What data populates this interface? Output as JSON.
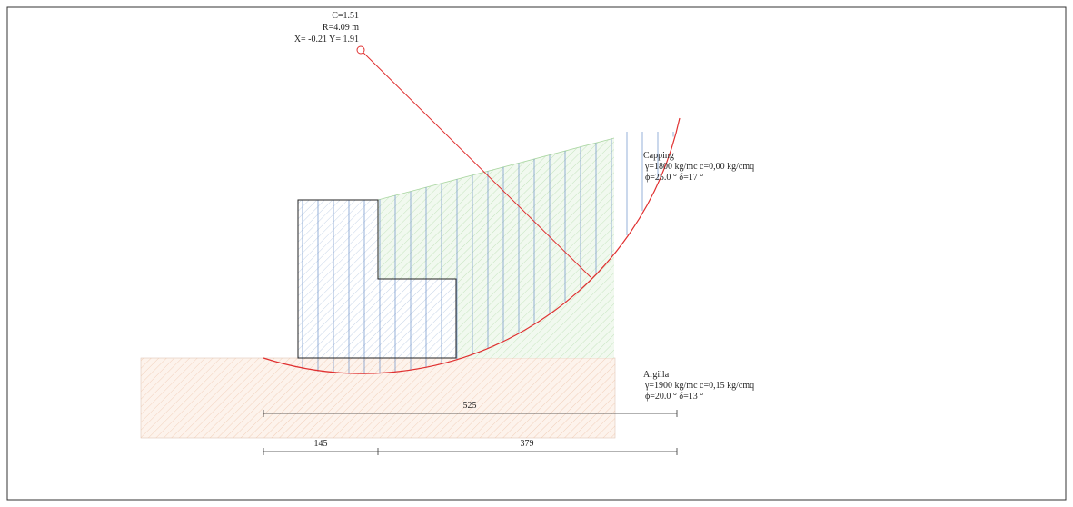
{
  "circle": {
    "factor": "C=1.51",
    "radius": "R=4.09 m",
    "center": "X= -0.21  Y= 1.91"
  },
  "layers": [
    {
      "name": "Capping",
      "props": [
        "γ=1800 kg/mc c=0,00 kg/cmq",
        "ϕ=25.0 °  δ=17 °"
      ]
    },
    {
      "name": "Argilla",
      "props": [
        "γ=1900 kg/mc c=0,15 kg/cmq",
        "ϕ=20.0 °  δ=13 °"
      ]
    }
  ],
  "dimensions": {
    "total": "525",
    "left": "145",
    "right": "379"
  }
}
